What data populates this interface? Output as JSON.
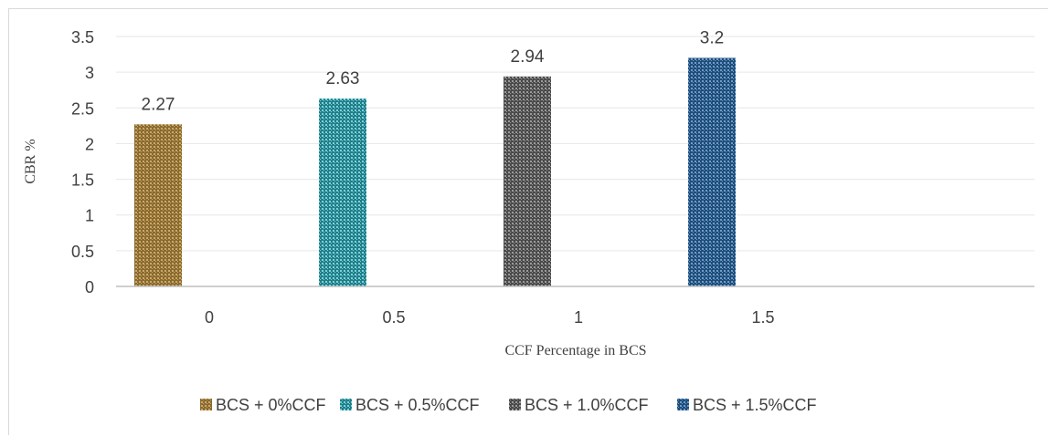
{
  "chart_data": {
    "type": "bar",
    "categories": [
      "0",
      "0.5",
      "1",
      "1.5"
    ],
    "series": [
      {
        "name": "BCS + 0%CCF",
        "x": "0",
        "value": 2.27,
        "color": "#8a6a2e",
        "pattern_dot": "#c9a86a"
      },
      {
        "name": "BCS + 0.5%CCF",
        "x": "0.5",
        "value": 2.63,
        "color": "#1f7f8a",
        "pattern_dot": "#7fd0d6"
      },
      {
        "name": "BCS + 1.0%CCF",
        "x": "1",
        "value": 2.94,
        "color": "#4a4a4a",
        "pattern_dot": "#9a9a9a"
      },
      {
        "name": "BCS + 1.5%CCF",
        "x": "1.5",
        "value": 3.2,
        "color": "#1e4d7a",
        "pattern_dot": "#6f9bc8"
      }
    ],
    "data_labels": [
      "2.27",
      "2.63",
      "2.94",
      "3.2"
    ],
    "ylabel": "CBR %",
    "xlabel": "CCF Percentage  in BCS",
    "ylim": [
      0,
      3.5
    ],
    "yticks": [
      "0",
      "0.5",
      "1",
      "1.5",
      "2",
      "2.5",
      "3",
      "3.5"
    ],
    "grid": true,
    "legend_position": "bottom"
  }
}
